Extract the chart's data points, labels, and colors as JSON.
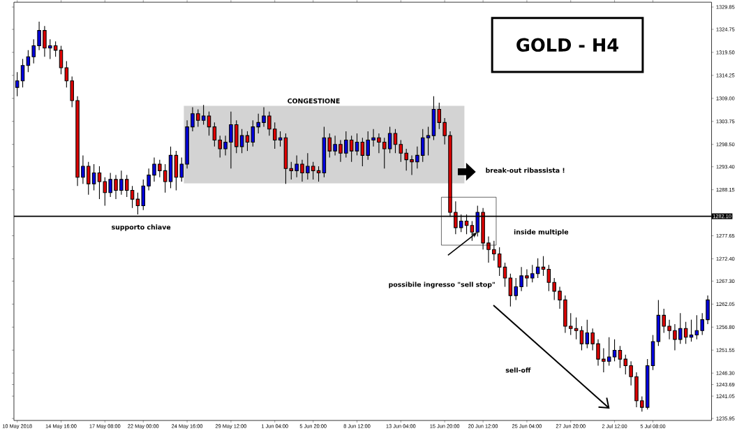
{
  "chart_data": {
    "type": "candlestick",
    "title": "GOLD - H4",
    "categories": [
      "10 May 2018",
      null,
      null,
      null,
      null,
      null,
      null,
      null,
      "14 May 16:00",
      null,
      null,
      null,
      null,
      null,
      null,
      null,
      "17 May 08:00",
      null,
      null,
      null,
      null,
      null,
      null,
      "22 May 00:00",
      null,
      null,
      null,
      null,
      null,
      null,
      null,
      "24 May 16:00",
      null,
      null,
      null,
      null,
      null,
      null,
      null,
      "29 May 12:00",
      null,
      null,
      null,
      null,
      null,
      null,
      null,
      "1 Jun 04:00",
      null,
      null,
      null,
      null,
      null,
      null,
      "5 Jun 20:00",
      null,
      null,
      null,
      null,
      null,
      null,
      null,
      "8 Jun 12:00",
      null,
      null,
      null,
      null,
      null,
      null,
      null,
      "13 Jun 04:00",
      null,
      null,
      null,
      null,
      null,
      null,
      null,
      "15 Jun 20:00",
      null,
      null,
      null,
      null,
      null,
      null,
      "20 Jun 12:00",
      null,
      null,
      null,
      null,
      null,
      null,
      null,
      "25 Jun 04:00",
      null,
      null,
      null,
      null,
      null,
      null,
      null,
      "27 Jun 20:00",
      null,
      null,
      null,
      null,
      null,
      null,
      null,
      "2 Jul 12:00",
      null,
      null,
      null,
      null,
      null,
      null,
      "5 Jul 08:00",
      null,
      null,
      null,
      null,
      null,
      null,
      null,
      null,
      null,
      null
    ],
    "ohlc": [
      [
        1311.5,
        1315.0,
        1309.5,
        1313.0
      ],
      [
        1313.0,
        1318.0,
        1311.5,
        1316.5
      ],
      [
        1316.5,
        1320.0,
        1315.0,
        1318.5
      ],
      [
        1318.5,
        1322.5,
        1317.0,
        1321.0
      ],
      [
        1321.0,
        1326.5,
        1320.0,
        1324.5
      ],
      [
        1324.5,
        1325.5,
        1318.5,
        1320.5
      ],
      [
        1320.5,
        1322.5,
        1318.0,
        1321.0
      ],
      [
        1321.0,
        1322.0,
        1318.5,
        1320.0
      ],
      [
        1320.0,
        1321.0,
        1314.5,
        1316.0
      ],
      [
        1316.0,
        1317.5,
        1311.5,
        1313.0
      ],
      [
        1313.0,
        1314.0,
        1307.0,
        1308.5
      ],
      [
        1308.5,
        1309.5,
        1289.0,
        1291.0
      ],
      [
        1291.0,
        1296.0,
        1289.5,
        1293.5
      ],
      [
        1293.5,
        1294.5,
        1287.0,
        1289.5
      ],
      [
        1289.5,
        1294.0,
        1288.0,
        1292.0
      ],
      [
        1292.0,
        1293.5,
        1286.0,
        1290.0
      ],
      [
        1290.0,
        1291.0,
        1284.5,
        1287.5
      ],
      [
        1287.5,
        1292.0,
        1286.5,
        1290.5
      ],
      [
        1290.5,
        1291.5,
        1286.0,
        1288.0
      ],
      [
        1288.0,
        1292.5,
        1287.0,
        1290.5
      ],
      [
        1290.5,
        1291.5,
        1286.5,
        1288.0
      ],
      [
        1288.0,
        1289.0,
        1284.0,
        1286.0
      ],
      [
        1286.0,
        1287.5,
        1282.5,
        1284.5
      ],
      [
        1284.5,
        1290.5,
        1283.5,
        1289.0
      ],
      [
        1289.0,
        1293.0,
        1288.0,
        1291.5
      ],
      [
        1291.5,
        1295.5,
        1290.0,
        1294.0
      ],
      [
        1294.0,
        1295.0,
        1291.0,
        1292.5
      ],
      [
        1292.5,
        1294.0,
        1287.5,
        1290.0
      ],
      [
        1290.0,
        1298.0,
        1288.5,
        1296.0
      ],
      [
        1296.0,
        1297.0,
        1288.0,
        1291.0
      ],
      [
        1291.0,
        1295.5,
        1290.0,
        1294.0
      ],
      [
        1294.0,
        1304.0,
        1293.0,
        1302.5
      ],
      [
        1302.5,
        1307.0,
        1301.5,
        1305.5
      ],
      [
        1305.5,
        1306.5,
        1302.5,
        1304.0
      ],
      [
        1304.0,
        1307.5,
        1303.0,
        1305.0
      ],
      [
        1305.0,
        1306.0,
        1300.5,
        1302.5
      ],
      [
        1302.5,
        1303.5,
        1298.0,
        1299.5
      ],
      [
        1299.5,
        1300.5,
        1295.5,
        1297.5
      ],
      [
        1297.5,
        1300.5,
        1296.0,
        1299.0
      ],
      [
        1299.0,
        1306.0,
        1293.0,
        1303.0
      ],
      [
        1303.0,
        1304.0,
        1296.5,
        1298.0
      ],
      [
        1298.0,
        1302.0,
        1296.5,
        1300.5
      ],
      [
        1300.5,
        1301.5,
        1297.0,
        1299.0
      ],
      [
        1299.0,
        1304.0,
        1298.0,
        1302.5
      ],
      [
        1302.5,
        1305.5,
        1301.0,
        1303.5
      ],
      [
        1303.5,
        1307.0,
        1302.5,
        1305.0
      ],
      [
        1305.0,
        1306.0,
        1300.5,
        1302.0
      ],
      [
        1302.0,
        1303.5,
        1297.5,
        1299.5
      ],
      [
        1299.5,
        1301.5,
        1298.0,
        1300.0
      ],
      [
        1300.0,
        1301.0,
        1289.5,
        1293.0
      ],
      [
        1293.0,
        1294.5,
        1290.5,
        1292.5
      ],
      [
        1292.5,
        1296.0,
        1291.0,
        1294.0
      ],
      [
        1294.0,
        1295.0,
        1290.0,
        1292.0
      ],
      [
        1292.0,
        1296.5,
        1290.5,
        1293.5
      ],
      [
        1293.5,
        1294.5,
        1290.5,
        1292.5
      ],
      [
        1292.5,
        1293.5,
        1290.0,
        1292.0
      ],
      [
        1292.0,
        1302.5,
        1291.0,
        1300.0
      ],
      [
        1300.0,
        1301.0,
        1295.5,
        1297.0
      ],
      [
        1297.0,
        1300.5,
        1296.0,
        1298.5
      ],
      [
        1298.5,
        1299.5,
        1294.5,
        1296.5
      ],
      [
        1296.5,
        1301.5,
        1295.5,
        1299.5
      ],
      [
        1299.5,
        1300.5,
        1294.5,
        1297.0
      ],
      [
        1297.0,
        1301.0,
        1296.0,
        1299.0
      ],
      [
        1299.0,
        1300.0,
        1293.5,
        1296.0
      ],
      [
        1296.0,
        1301.5,
        1295.0,
        1299.5
      ],
      [
        1299.5,
        1302.0,
        1298.0,
        1300.0
      ],
      [
        1300.0,
        1301.0,
        1296.5,
        1299.0
      ],
      [
        1299.0,
        1300.0,
        1293.0,
        1297.5
      ],
      [
        1297.5,
        1302.5,
        1296.5,
        1301.0
      ],
      [
        1301.0,
        1302.0,
        1296.5,
        1298.5
      ],
      [
        1298.5,
        1299.5,
        1294.5,
        1296.5
      ],
      [
        1296.5,
        1297.5,
        1292.5,
        1295.0
      ],
      [
        1295.0,
        1296.0,
        1291.5,
        1294.5
      ],
      [
        1294.5,
        1298.0,
        1293.0,
        1296.0
      ],
      [
        1296.0,
        1302.0,
        1294.5,
        1300.0
      ],
      [
        1300.0,
        1302.5,
        1296.0,
        1300.5
      ],
      [
        1300.5,
        1309.5,
        1299.5,
        1306.5
      ],
      [
        1306.5,
        1308.0,
        1302.0,
        1303.5
      ],
      [
        1303.5,
        1304.5,
        1298.5,
        1300.5
      ],
      [
        1300.5,
        1301.5,
        1282.0,
        1283.0
      ],
      [
        1283.0,
        1285.5,
        1278.0,
        1279.5
      ],
      [
        1279.5,
        1282.5,
        1278.5,
        1281.0
      ],
      [
        1281.0,
        1282.5,
        1278.0,
        1280.0
      ],
      [
        1280.0,
        1281.0,
        1276.5,
        1278.5
      ],
      [
        1278.5,
        1284.5,
        1277.5,
        1283.0
      ],
      [
        1283.0,
        1284.0,
        1274.5,
        1276.0
      ],
      [
        1276.0,
        1277.5,
        1271.5,
        1274.5
      ],
      [
        1274.5,
        1276.5,
        1272.0,
        1273.5
      ],
      [
        1273.5,
        1275.0,
        1268.5,
        1270.5
      ],
      [
        1270.5,
        1271.5,
        1266.0,
        1268.0
      ],
      [
        1268.0,
        1269.0,
        1261.5,
        1264.0
      ],
      [
        1264.0,
        1268.0,
        1263.0,
        1266.0
      ],
      [
        1266.0,
        1270.5,
        1265.0,
        1268.5
      ],
      [
        1268.5,
        1270.0,
        1266.0,
        1268.0
      ],
      [
        1268.0,
        1271.0,
        1267.0,
        1269.0
      ],
      [
        1269.0,
        1272.5,
        1268.0,
        1270.5
      ],
      [
        1270.5,
        1273.0,
        1268.5,
        1270.0
      ],
      [
        1270.0,
        1271.0,
        1265.0,
        1267.0
      ],
      [
        1267.0,
        1268.0,
        1263.0,
        1265.0
      ],
      [
        1265.0,
        1266.0,
        1261.0,
        1263.0
      ],
      [
        1263.0,
        1264.0,
        1255.5,
        1257.0
      ],
      [
        1257.0,
        1260.0,
        1255.0,
        1256.5
      ],
      [
        1256.5,
        1259.0,
        1254.0,
        1256.0
      ],
      [
        1256.0,
        1257.0,
        1251.5,
        1253.0
      ],
      [
        1253.0,
        1258.5,
        1252.0,
        1255.5
      ],
      [
        1255.5,
        1256.5,
        1251.5,
        1253.0
      ],
      [
        1253.0,
        1254.0,
        1248.0,
        1249.5
      ],
      [
        1249.5,
        1252.0,
        1246.5,
        1249.0
      ],
      [
        1249.0,
        1254.5,
        1248.0,
        1250.0
      ],
      [
        1250.0,
        1254.0,
        1249.0,
        1251.5
      ],
      [
        1251.5,
        1252.5,
        1247.5,
        1249.5
      ],
      [
        1249.5,
        1250.5,
        1246.0,
        1248.0
      ],
      [
        1248.0,
        1249.0,
        1243.5,
        1245.5
      ],
      [
        1245.5,
        1246.5,
        1238.5,
        1240.0
      ],
      [
        1240.0,
        1241.0,
        1237.5,
        1238.5
      ],
      [
        1238.5,
        1249.5,
        1238.0,
        1248.0
      ],
      [
        1248.0,
        1255.0,
        1247.0,
        1253.5
      ],
      [
        1253.5,
        1263.0,
        1252.5,
        1259.5
      ],
      [
        1259.5,
        1261.0,
        1255.5,
        1257.0
      ],
      [
        1257.0,
        1258.5,
        1254.0,
        1256.0
      ],
      [
        1256.0,
        1257.5,
        1251.5,
        1254.0
      ],
      [
        1254.0,
        1260.0,
        1253.0,
        1256.5
      ],
      [
        1256.5,
        1258.0,
        1253.0,
        1254.5
      ],
      [
        1254.5,
        1258.5,
        1253.5,
        1255.0
      ],
      [
        1255.0,
        1259.5,
        1254.0,
        1256.0
      ],
      [
        1256.0,
        1260.0,
        1255.0,
        1258.5
      ],
      [
        1258.5,
        1264.0,
        1257.5,
        1263.0
      ]
    ],
    "ylim": [
      1235.5,
      1330.95
    ],
    "yticks": [
      {
        "value": 1235.95,
        "label": "1235.95"
      },
      {
        "value": 1241.05,
        "label": "1241.05"
      },
      {
        "value": 1243.69,
        "label": "1243.69"
      },
      {
        "value": 1246.3,
        "label": "1246.30"
      },
      {
        "value": 1251.55,
        "label": "1251.55"
      },
      {
        "value": 1256.8,
        "label": "1256.80"
      },
      {
        "value": 1262.05,
        "label": "1262.05"
      },
      {
        "value": 1267.3,
        "label": "1267.30"
      },
      {
        "value": 1272.4,
        "label": "1272.40"
      },
      {
        "value": 1277.65,
        "label": "1277.65"
      },
      {
        "value": 1288.15,
        "label": "1288.15"
      },
      {
        "value": 1293.4,
        "label": "1293.40"
      },
      {
        "value": 1298.5,
        "label": "1298.50"
      },
      {
        "value": 1303.75,
        "label": "1303.75"
      },
      {
        "value": 1309.0,
        "label": "1309.00"
      },
      {
        "value": 1314.25,
        "label": "1314.25"
      },
      {
        "value": 1319.5,
        "label": "1319.50"
      },
      {
        "value": 1324.75,
        "label": "1324.75"
      },
      {
        "value": 1329.85,
        "label": "1329.85"
      }
    ],
    "ref_lines": [
      {
        "axis": "y",
        "value": 1282.1,
        "label": "1282.10",
        "color": "#000000"
      }
    ],
    "bands": [
      {
        "axis": "y",
        "from": 1289.6,
        "to": 1307.3,
        "label": "CONGESTIONE",
        "color": "#d3d3d3"
      }
    ],
    "annotations": [
      "break-out ribassista !",
      "supporto chiave",
      "inside multiple",
      "possibile ingresso \"sell stop\"",
      "sell-off"
    ]
  }
}
